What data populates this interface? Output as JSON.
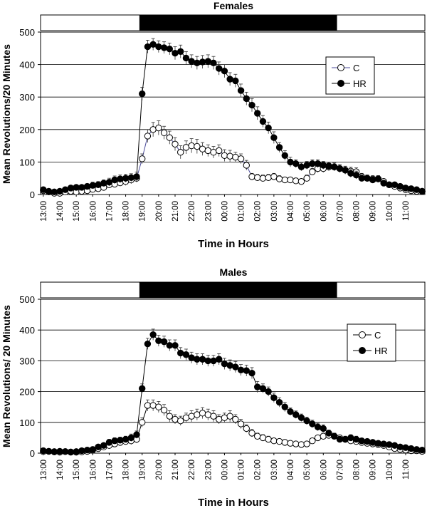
{
  "chart_data": [
    {
      "type": "line",
      "title": "Females",
      "xlabel": "Time in Hours",
      "ylabel": "Mean Revolutions/20 Minutes",
      "ylim": [
        0,
        500
      ],
      "yticks": [
        0,
        100,
        200,
        300,
        400,
        500
      ],
      "grid": "horizontal",
      "legend_position": "right",
      "light_dark_bar": {
        "dark_start": "19:00",
        "dark_end": "07:00"
      },
      "x": [
        "13:00",
        "13:20",
        "13:40",
        "14:00",
        "14:20",
        "14:40",
        "15:00",
        "15:20",
        "15:40",
        "16:00",
        "16:20",
        "16:40",
        "17:00",
        "17:20",
        "17:40",
        "18:00",
        "18:20",
        "18:40",
        "19:00",
        "19:20",
        "19:40",
        "20:00",
        "20:20",
        "20:40",
        "21:00",
        "21:20",
        "21:40",
        "22:00",
        "22:20",
        "22:40",
        "23:00",
        "23:20",
        "23:40",
        "00:00",
        "00:20",
        "00:40",
        "01:00",
        "01:20",
        "01:40",
        "02:00",
        "02:20",
        "02:40",
        "03:00",
        "03:20",
        "03:40",
        "04:00",
        "04:20",
        "04:40",
        "05:00",
        "05:20",
        "05:40",
        "06:00",
        "06:20",
        "06:40",
        "07:00",
        "07:20",
        "07:40",
        "08:00",
        "08:20",
        "08:40",
        "09:00",
        "09:20",
        "09:40",
        "10:00",
        "10:20",
        "10:40",
        "11:00",
        "11:20",
        "11:40",
        "12:00"
      ],
      "xticklabels": [
        "13:00",
        "14:00",
        "15:00",
        "16:00",
        "17:00",
        "18:00",
        "19:00",
        "20:00",
        "21:00",
        "22:00",
        "23:00",
        "00:00",
        "01:00",
        "02:00",
        "03:00",
        "04:00",
        "05:00",
        "06:00",
        "07:00",
        "08:00",
        "09:00",
        "10:00",
        "11:00"
      ],
      "series": [
        {
          "name": "C",
          "marker": "open-circle",
          "color": "#000000",
          "line_color": "#4a4a9a",
          "values": [
            12,
            8,
            4,
            4,
            8,
            10,
            8,
            10,
            12,
            16,
            18,
            22,
            30,
            32,
            36,
            40,
            45,
            50,
            110,
            180,
            200,
            205,
            190,
            175,
            155,
            130,
            145,
            150,
            148,
            140,
            135,
            130,
            135,
            120,
            118,
            115,
            110,
            90,
            55,
            52,
            50,
            52,
            55,
            48,
            45,
            45,
            42,
            40,
            50,
            70,
            80,
            80,
            85,
            85,
            80,
            75,
            72,
            70,
            55,
            50,
            48,
            48,
            40,
            30,
            25,
            20,
            15,
            12,
            10,
            10
          ],
          "errors": [
            6,
            5,
            3,
            3,
            5,
            6,
            5,
            6,
            6,
            8,
            8,
            10,
            10,
            10,
            10,
            12,
            12,
            12,
            15,
            20,
            22,
            22,
            20,
            20,
            20,
            20,
            20,
            22,
            22,
            20,
            18,
            18,
            18,
            18,
            18,
            15,
            15,
            15,
            10,
            10,
            10,
            10,
            10,
            10,
            8,
            8,
            8,
            8,
            10,
            10,
            12,
            12,
            12,
            12,
            12,
            12,
            12,
            12,
            10,
            10,
            10,
            10,
            8,
            8,
            8,
            6,
            6,
            6,
            5,
            5
          ]
        },
        {
          "name": "HR",
          "marker": "filled-circle",
          "color": "#000000",
          "values": [
            15,
            10,
            8,
            10,
            15,
            20,
            22,
            22,
            25,
            28,
            30,
            35,
            38,
            45,
            48,
            50,
            52,
            55,
            310,
            455,
            462,
            455,
            452,
            448,
            435,
            440,
            420,
            410,
            405,
            408,
            410,
            405,
            388,
            380,
            355,
            350,
            320,
            295,
            275,
            250,
            225,
            205,
            175,
            145,
            120,
            100,
            95,
            85,
            90,
            95,
            95,
            90,
            88,
            85,
            80,
            75,
            65,
            60,
            50,
            50,
            45,
            48,
            35,
            30,
            30,
            25,
            20,
            18,
            15,
            10
          ],
          "errors": [
            6,
            5,
            5,
            5,
            6,
            8,
            8,
            8,
            8,
            10,
            10,
            10,
            12,
            12,
            12,
            12,
            12,
            14,
            20,
            20,
            18,
            18,
            18,
            18,
            20,
            20,
            20,
            20,
            20,
            20,
            20,
            20,
            20,
            20,
            20,
            20,
            20,
            20,
            20,
            20,
            18,
            18,
            18,
            15,
            15,
            15,
            12,
            12,
            12,
            12,
            12,
            12,
            12,
            12,
            12,
            12,
            12,
            12,
            10,
            10,
            10,
            10,
            8,
            8,
            8,
            8,
            6,
            6,
            6,
            5
          ]
        }
      ]
    },
    {
      "type": "line",
      "title": "Males",
      "xlabel": "Time in Hours",
      "ylabel": "Mean Revolutions/ 20 Minutes",
      "ylim": [
        0,
        500
      ],
      "yticks": [
        0,
        100,
        200,
        300,
        400,
        500
      ],
      "grid": "horizontal",
      "legend_position": "right",
      "light_dark_bar": {
        "dark_start": "19:00",
        "dark_end": "07:00"
      },
      "x": [
        "13:00",
        "13:20",
        "13:40",
        "14:00",
        "14:20",
        "14:40",
        "15:00",
        "15:20",
        "15:40",
        "16:00",
        "16:20",
        "16:40",
        "17:00",
        "17:20",
        "17:40",
        "18:00",
        "18:20",
        "18:40",
        "19:00",
        "19:20",
        "19:40",
        "20:00",
        "20:20",
        "20:40",
        "21:00",
        "21:20",
        "21:40",
        "22:00",
        "22:20",
        "22:40",
        "23:00",
        "23:20",
        "23:40",
        "00:00",
        "00:20",
        "00:40",
        "01:00",
        "01:20",
        "01:40",
        "02:00",
        "02:20",
        "02:40",
        "03:00",
        "03:20",
        "03:40",
        "04:00",
        "04:20",
        "04:40",
        "05:00",
        "05:20",
        "05:40",
        "06:00",
        "06:20",
        "06:40",
        "07:00",
        "07:20",
        "07:40",
        "08:00",
        "08:20",
        "08:40",
        "09:00",
        "09:20",
        "09:40",
        "10:00",
        "10:20",
        "10:40",
        "11:00",
        "11:20",
        "11:40",
        "12:00"
      ],
      "xticklabels": [
        "13:00",
        "14:00",
        "15:00",
        "16:00",
        "17:00",
        "18:00",
        "19:00",
        "20:00",
        "21:00",
        "22:00",
        "23:00",
        "00:00",
        "01:00",
        "02:00",
        "03:00",
        "04:00",
        "05:00",
        "06:00",
        "07:00",
        "08:00",
        "09:00",
        "10:00",
        "11:00"
      ],
      "series": [
        {
          "name": "C",
          "marker": "open-circle",
          "color": "#000000",
          "values": [
            5,
            6,
            4,
            3,
            5,
            4,
            3,
            4,
            6,
            10,
            15,
            20,
            25,
            30,
            35,
            38,
            40,
            45,
            100,
            155,
            155,
            150,
            140,
            120,
            110,
            105,
            115,
            120,
            125,
            130,
            125,
            120,
            110,
            115,
            120,
            110,
            95,
            80,
            65,
            55,
            50,
            45,
            40,
            38,
            35,
            32,
            30,
            28,
            30,
            40,
            50,
            55,
            58,
            55,
            50,
            45,
            40,
            38,
            35,
            32,
            30,
            28,
            25,
            20,
            15,
            12,
            10,
            8,
            8,
            6
          ],
          "errors": [
            4,
            4,
            3,
            3,
            4,
            3,
            3,
            3,
            4,
            5,
            6,
            8,
            8,
            10,
            10,
            10,
            12,
            12,
            15,
            18,
            18,
            18,
            18,
            18,
            15,
            15,
            15,
            18,
            18,
            18,
            18,
            18,
            15,
            15,
            18,
            15,
            15,
            12,
            12,
            10,
            10,
            10,
            8,
            8,
            8,
            8,
            8,
            6,
            6,
            8,
            8,
            10,
            10,
            10,
            8,
            8,
            8,
            8,
            8,
            6,
            6,
            6,
            6,
            5,
            5,
            4,
            4,
            4,
            4,
            3
          ]
        },
        {
          "name": "HR",
          "marker": "filled-circle",
          "color": "#000000",
          "values": [
            8,
            6,
            5,
            6,
            5,
            3,
            5,
            8,
            10,
            12,
            20,
            25,
            35,
            40,
            42,
            45,
            50,
            60,
            210,
            355,
            385,
            365,
            362,
            350,
            350,
            325,
            320,
            310,
            305,
            305,
            300,
            300,
            305,
            290,
            285,
            280,
            270,
            268,
            260,
            215,
            210,
            200,
            180,
            165,
            150,
            135,
            125,
            115,
            105,
            95,
            85,
            80,
            65,
            55,
            45,
            45,
            50,
            45,
            40,
            38,
            35,
            32,
            30,
            28,
            25,
            20,
            18,
            15,
            12,
            10
          ],
          "errors": [
            4,
            4,
            3,
            3,
            3,
            3,
            3,
            4,
            5,
            6,
            8,
            8,
            10,
            10,
            10,
            10,
            12,
            12,
            15,
            18,
            18,
            18,
            18,
            18,
            18,
            18,
            18,
            18,
            18,
            18,
            18,
            18,
            18,
            18,
            18,
            18,
            18,
            18,
            18,
            18,
            15,
            15,
            15,
            15,
            15,
            12,
            12,
            12,
            12,
            12,
            12,
            12,
            10,
            10,
            10,
            10,
            10,
            10,
            8,
            8,
            8,
            8,
            8,
            6,
            6,
            6,
            5,
            5,
            5,
            4
          ]
        }
      ]
    }
  ]
}
